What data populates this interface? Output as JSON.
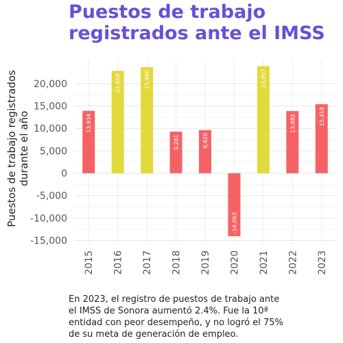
{
  "chart_data": {
    "type": "bar",
    "title": "Puestos de trabajo registrados ante el IMSS",
    "ylabel_lines": [
      "Puestos de trabajo registrados",
      "durante el año"
    ],
    "xlabel": "",
    "categories": [
      "2015",
      "2016",
      "2017",
      "2018",
      "2019",
      "2020",
      "2021",
      "2022",
      "2023"
    ],
    "values": [
      13934,
      22858,
      23680,
      9281,
      9626,
      -14063,
      23907,
      13882,
      15418
    ],
    "value_labels": [
      "13,934",
      "22,858",
      "23,680",
      "9,281",
      "9,626",
      "-14,063",
      "23,907",
      "13,882",
      "15,418"
    ],
    "bar_colors": [
      "#f56265",
      "#e2d93a",
      "#e2d93a",
      "#f56265",
      "#f56265",
      "#f56265",
      "#e2d93a",
      "#f56265",
      "#f56265"
    ],
    "yticks": [
      20000,
      15000,
      10000,
      5000,
      0,
      -5000,
      -10000,
      -15000
    ],
    "ytick_labels": [
      "20,000",
      "15,000",
      "10,000",
      "5,000",
      "0",
      "-5,000",
      "-10,000",
      "-15,000"
    ],
    "ylim": [
      -16000,
      25500
    ],
    "grid": true,
    "legend": "none"
  },
  "caption": "En 2023, el registro de puestos de trabajo ante el IMSS de Sonora aumentó 2.4%. Fue la 10ª entidad con peor desempeño, y no logró el 75% de su meta de generación de empleo."
}
